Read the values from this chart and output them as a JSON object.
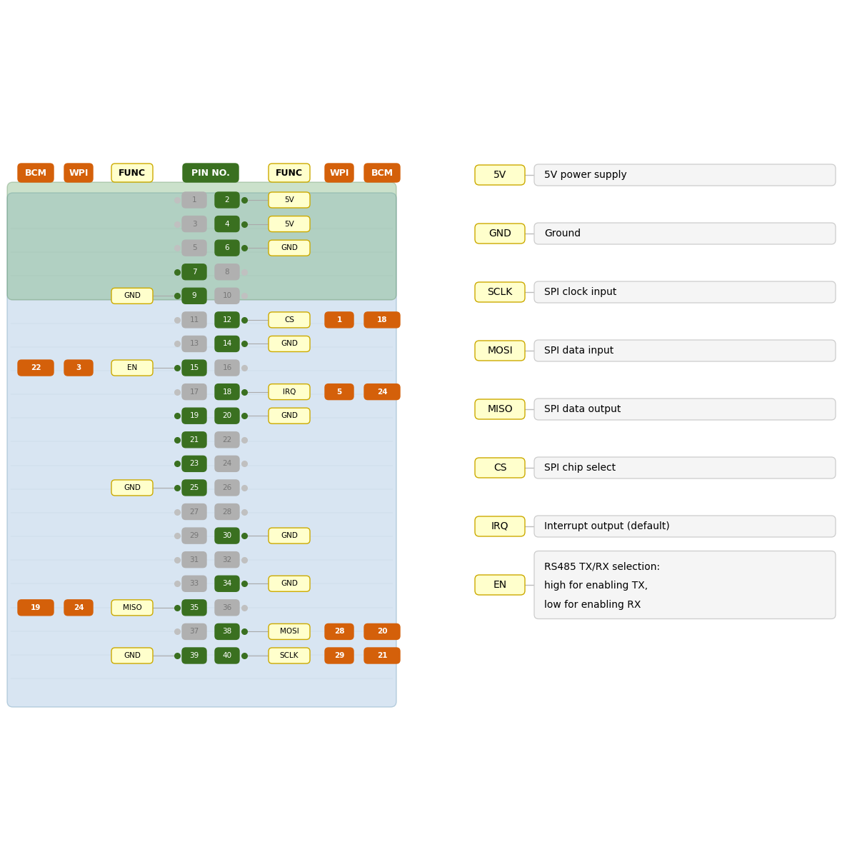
{
  "bg_color": "#ffffff",
  "orange_color": "#d4600a",
  "yellow_color": "#ffffcc",
  "yellow_border": "#ccaa00",
  "green_color": "#3a7020",
  "gray_active": "#888888",
  "gray_inactive": "#bbbbbb",
  "gray_text_inactive": "#999999",
  "desc_bg": "#f2f2f2",
  "desc_border": "#cccccc",
  "pcb_bg": "#a8c4d8",
  "pins": [
    {
      "lp": 1,
      "rp": 2,
      "lf": null,
      "rf": "5V",
      "la": false,
      "ra": true,
      "lb": null,
      "lw": null,
      "rw": null,
      "rb": null
    },
    {
      "lp": 3,
      "rp": 4,
      "lf": null,
      "rf": "5V",
      "la": false,
      "ra": true,
      "lb": null,
      "lw": null,
      "rw": null,
      "rb": null
    },
    {
      "lp": 5,
      "rp": 6,
      "lf": null,
      "rf": "GND",
      "la": false,
      "ra": true,
      "lb": null,
      "lw": null,
      "rw": null,
      "rb": null
    },
    {
      "lp": 7,
      "rp": 8,
      "lf": null,
      "rf": null,
      "la": true,
      "ra": false,
      "lb": null,
      "lw": null,
      "rw": null,
      "rb": null
    },
    {
      "lp": 9,
      "rp": 10,
      "lf": "GND",
      "rf": null,
      "la": true,
      "ra": false,
      "lb": null,
      "lw": null,
      "rw": null,
      "rb": null
    },
    {
      "lp": 11,
      "rp": 12,
      "lf": null,
      "rf": "CS",
      "la": false,
      "ra": true,
      "lb": null,
      "lw": null,
      "rw": 1,
      "rb": 18
    },
    {
      "lp": 13,
      "rp": 14,
      "lf": null,
      "rf": "GND",
      "la": false,
      "ra": true,
      "lb": null,
      "lw": null,
      "rw": null,
      "rb": null
    },
    {
      "lp": 15,
      "rp": 16,
      "lf": "EN",
      "rf": null,
      "la": true,
      "ra": false,
      "lb": 22,
      "lw": 3,
      "rw": null,
      "rb": null
    },
    {
      "lp": 17,
      "rp": 18,
      "lf": null,
      "rf": "IRQ",
      "la": false,
      "ra": true,
      "lb": null,
      "lw": null,
      "rw": 5,
      "rb": 24
    },
    {
      "lp": 19,
      "rp": 20,
      "lf": null,
      "rf": "GND",
      "la": true,
      "ra": true,
      "lb": null,
      "lw": null,
      "rw": null,
      "rb": null
    },
    {
      "lp": 21,
      "rp": 22,
      "lf": null,
      "rf": null,
      "la": true,
      "ra": false,
      "lb": null,
      "lw": null,
      "rw": null,
      "rb": null
    },
    {
      "lp": 23,
      "rp": 24,
      "lf": null,
      "rf": null,
      "la": true,
      "ra": false,
      "lb": null,
      "lw": null,
      "rw": null,
      "rb": null
    },
    {
      "lp": 25,
      "rp": 26,
      "lf": "GND",
      "rf": null,
      "la": true,
      "ra": false,
      "lb": null,
      "lw": null,
      "rw": null,
      "rb": null
    },
    {
      "lp": 27,
      "rp": 28,
      "lf": null,
      "rf": null,
      "la": false,
      "ra": false,
      "lb": null,
      "lw": null,
      "rw": null,
      "rb": null
    },
    {
      "lp": 29,
      "rp": 30,
      "lf": null,
      "rf": "GND",
      "la": false,
      "ra": true,
      "lb": null,
      "lw": null,
      "rw": null,
      "rb": null
    },
    {
      "lp": 31,
      "rp": 32,
      "lf": null,
      "rf": null,
      "la": false,
      "ra": false,
      "lb": null,
      "lw": null,
      "rw": null,
      "rb": null
    },
    {
      "lp": 33,
      "rp": 34,
      "lf": null,
      "rf": "GND",
      "la": false,
      "ra": true,
      "lb": null,
      "lw": null,
      "rw": null,
      "rb": null
    },
    {
      "lp": 35,
      "rp": 36,
      "lf": "MISO",
      "rf": null,
      "la": true,
      "ra": false,
      "lb": 19,
      "lw": 24,
      "rw": null,
      "rb": null
    },
    {
      "lp": 37,
      "rp": 38,
      "lf": null,
      "rf": "MOSI",
      "la": false,
      "ra": true,
      "lb": null,
      "lw": null,
      "rw": 28,
      "rb": 20
    },
    {
      "lp": 39,
      "rp": 40,
      "lf": "GND",
      "rf": "SCLK",
      "la": true,
      "ra": true,
      "lb": null,
      "lw": null,
      "rw": 29,
      "rb": 21
    }
  ],
  "legend_items": [
    {
      "label": "5V",
      "desc": "5V power supply"
    },
    {
      "label": "GND",
      "desc": "Ground"
    },
    {
      "label": "SCLK",
      "desc": "SPI clock input"
    },
    {
      "label": "MOSI",
      "desc": "SPI data input"
    },
    {
      "label": "MISO",
      "desc": "SPI data output"
    },
    {
      "label": "CS",
      "desc": "SPI chip select"
    },
    {
      "label": "IRQ",
      "desc": "Interrupt output (default)"
    },
    {
      "label": "EN",
      "desc": "RS485 TX/RX selection:\nhigh for enabling TX,\nlow for enabling RX"
    }
  ]
}
